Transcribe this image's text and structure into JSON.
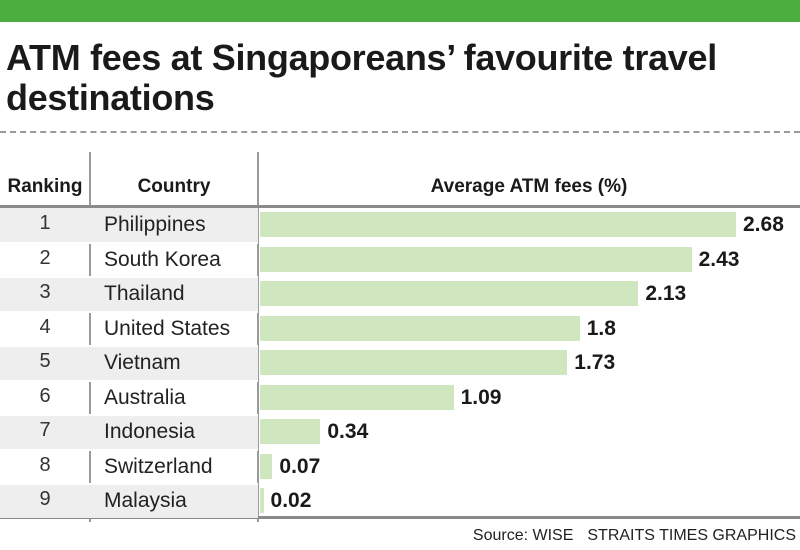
{
  "title": "ATM fees at Singaporeans’ favourite travel destinations",
  "headers": {
    "ranking": "Ranking",
    "country": "Country",
    "fees": "Average ATM fees (%)"
  },
  "source": {
    "credit": "Source: WISE",
    "publisher": "STRAITS TIMES GRAPHICS"
  },
  "colors": {
    "topbar": "#4cae3e",
    "bar": "#cfe6bf",
    "row_shade": "#eeeeee"
  },
  "chart_data": {
    "type": "bar",
    "orientation": "horizontal",
    "title": "ATM fees at Singaporeans’ favourite travel destinations",
    "xlabel": "Average ATM fees (%)",
    "ranking": [
      "1",
      "2",
      "3",
      "4",
      "5",
      "6",
      "7",
      "8",
      "9"
    ],
    "categories": [
      "Philippines",
      "South Korea",
      "Thailand",
      "United States",
      "Vietnam",
      "Australia",
      "Indonesia",
      "Switzerland",
      "Malaysia"
    ],
    "values": [
      2.68,
      2.43,
      2.13,
      1.8,
      1.73,
      1.09,
      0.34,
      0.07,
      0.02
    ],
    "value_labels": [
      "2.68",
      "2.43",
      "2.13",
      "1.8",
      "1.73",
      "1.09",
      "0.34",
      "0.07",
      "0.02"
    ],
    "xlim": [
      0,
      2.68
    ],
    "grid": false,
    "legend": "none"
  }
}
